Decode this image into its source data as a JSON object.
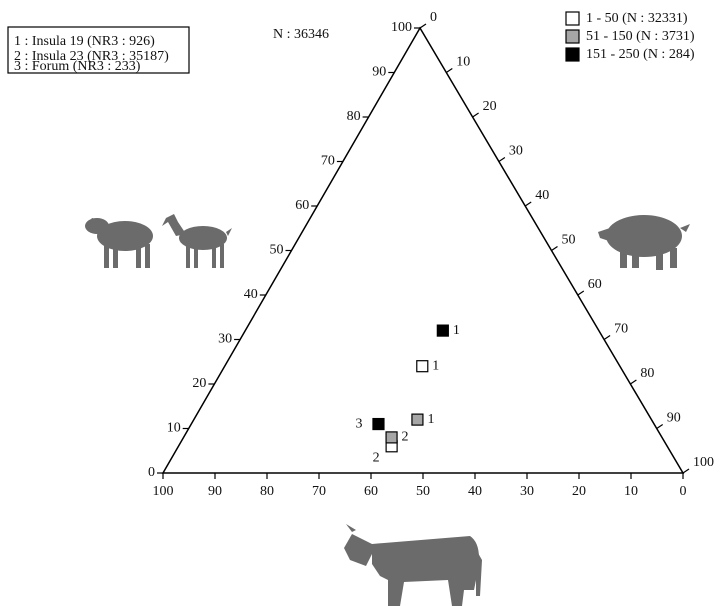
{
  "key": {
    "lines": [
      "1 : Insula 19 (NR3 : 926)",
      "2 : Insula 23 (NR3 : 35187)",
      "3 : Forum (NR3 : 233)"
    ]
  },
  "chart_data": {
    "type": "ternary",
    "annotation": "N : 36346",
    "axes": {
      "sheep_goat": {
        "ticks": [
          0,
          10,
          20,
          30,
          40,
          50,
          60,
          70,
          80,
          90,
          100
        ]
      },
      "pig": {
        "ticks": [
          0,
          10,
          20,
          30,
          40,
          50,
          60,
          70,
          80,
          90,
          100
        ]
      },
      "cattle": {
        "ticks": [
          100,
          90,
          80,
          70,
          60,
          50,
          40,
          30,
          20,
          10,
          0
        ]
      }
    },
    "legend": "top-right",
    "series": [
      {
        "name": "1 - 50 (N : 32331)",
        "color": "#ffffff",
        "points": [
          {
            "label": "1",
            "sheep_goat": 24,
            "pig": 38,
            "cattle": 38
          },
          {
            "label": "2",
            "sheep_goat": 6,
            "pig": 41,
            "cattle": 53
          }
        ]
      },
      {
        "name": "51 - 150 (N : 3731)",
        "color": "#a6a6a6",
        "points": [
          {
            "label": "1",
            "sheep_goat": 12,
            "pig": 43,
            "cattle": 45
          },
          {
            "label": "2",
            "sheep_goat": 8,
            "pig": 40,
            "cattle": 52
          }
        ]
      },
      {
        "name": "151 - 250 (N : 284)",
        "color": "#000000",
        "points": [
          {
            "label": "1",
            "sheep_goat": 32,
            "pig": 38,
            "cattle": 30
          },
          {
            "label": "3",
            "sheep_goat": 11,
            "pig": 36,
            "cattle": 53
          }
        ]
      }
    ]
  }
}
